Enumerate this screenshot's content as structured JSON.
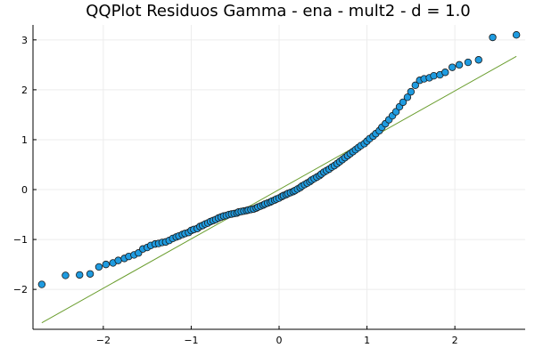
{
  "chart_data": {
    "type": "scatter",
    "title": "QQPlot Residuos Gamma - ena - mult2 - d = 1.0",
    "xlabel": "",
    "ylabel": "",
    "xlim": [
      -2.8,
      2.8
    ],
    "ylim": [
      -2.8,
      3.3
    ],
    "x_ticks": [
      -2,
      -1,
      0,
      1,
      2
    ],
    "y_ticks": [
      -2,
      -1,
      0,
      1,
      2,
      3
    ],
    "x_tick_labels": [
      "−2",
      "−1",
      "0",
      "1",
      "2"
    ],
    "y_tick_labels": [
      "−2",
      "−1",
      "0",
      "1",
      "2",
      "3"
    ],
    "grid": true,
    "legend": "none",
    "colors": {
      "points": "#1f9be0",
      "point_edge": "#1a1a1a",
      "line": "#6b9e2f",
      "grid": "#ececec",
      "axis": "#000000"
    },
    "series": [
      {
        "kind": "points",
        "x": [
          -2.7,
          -2.43,
          -2.27,
          -2.15,
          -2.05,
          -1.97,
          -1.89,
          -1.83,
          -1.76,
          -1.71,
          -1.65,
          -1.6,
          -1.55,
          -1.5,
          -1.46,
          -1.41,
          -1.37,
          -1.33,
          -1.29,
          -1.25,
          -1.21,
          -1.17,
          -1.14,
          -1.1,
          -1.07,
          -1.03,
          -1.0,
          -0.97,
          -0.93,
          -0.9,
          -0.87,
          -0.84,
          -0.81,
          -0.78,
          -0.75,
          -0.72,
          -0.69,
          -0.66,
          -0.63,
          -0.6,
          -0.57,
          -0.54,
          -0.51,
          -0.48,
          -0.46,
          -0.43,
          -0.4,
          -0.37,
          -0.35,
          -0.32,
          -0.29,
          -0.26,
          -0.24,
          -0.21,
          -0.18,
          -0.16,
          -0.13,
          -0.1,
          -0.08,
          -0.05,
          -0.03,
          0.0,
          0.03,
          0.05,
          0.08,
          0.1,
          0.13,
          0.16,
          0.18,
          0.21,
          0.24,
          0.26,
          0.29,
          0.32,
          0.35,
          0.37,
          0.4,
          0.43,
          0.46,
          0.48,
          0.51,
          0.54,
          0.57,
          0.6,
          0.63,
          0.66,
          0.69,
          0.72,
          0.75,
          0.78,
          0.81,
          0.84,
          0.87,
          0.9,
          0.93,
          0.97,
          1.0,
          1.03,
          1.07,
          1.1,
          1.14,
          1.17,
          1.21,
          1.25,
          1.29,
          1.33,
          1.37,
          1.41,
          1.46,
          1.5,
          1.55,
          1.6,
          1.65,
          1.71,
          1.76,
          1.83,
          1.89,
          1.97,
          2.05,
          2.15,
          2.27,
          2.43,
          2.7
        ],
        "y": [
          -1.9,
          -1.72,
          -1.71,
          -1.69,
          -1.55,
          -1.5,
          -1.47,
          -1.42,
          -1.38,
          -1.34,
          -1.31,
          -1.27,
          -1.19,
          -1.16,
          -1.12,
          -1.09,
          -1.08,
          -1.06,
          -1.05,
          -1.02,
          -0.98,
          -0.95,
          -0.93,
          -0.9,
          -0.88,
          -0.86,
          -0.82,
          -0.8,
          -0.78,
          -0.74,
          -0.72,
          -0.69,
          -0.67,
          -0.64,
          -0.62,
          -0.6,
          -0.57,
          -0.55,
          -0.53,
          -0.52,
          -0.5,
          -0.49,
          -0.48,
          -0.47,
          -0.45,
          -0.44,
          -0.43,
          -0.42,
          -0.41,
          -0.4,
          -0.39,
          -0.37,
          -0.35,
          -0.33,
          -0.31,
          -0.29,
          -0.27,
          -0.25,
          -0.23,
          -0.21,
          -0.19,
          -0.17,
          -0.14,
          -0.12,
          -0.1,
          -0.08,
          -0.06,
          -0.04,
          -0.02,
          0.01,
          0.04,
          0.07,
          0.1,
          0.13,
          0.16,
          0.19,
          0.22,
          0.25,
          0.28,
          0.31,
          0.35,
          0.38,
          0.41,
          0.45,
          0.48,
          0.52,
          0.56,
          0.6,
          0.64,
          0.68,
          0.72,
          0.76,
          0.8,
          0.84,
          0.88,
          0.92,
          0.97,
          1.02,
          1.07,
          1.12,
          1.18,
          1.25,
          1.32,
          1.4,
          1.48,
          1.56,
          1.66,
          1.75,
          1.85,
          1.96,
          2.09,
          2.19,
          2.22,
          2.24,
          2.28,
          2.3,
          2.35,
          2.45,
          2.5,
          2.55,
          2.6,
          3.05,
          3.1
        ]
      },
      {
        "kind": "reference-line",
        "x": [
          -2.7,
          2.7
        ],
        "y": [
          -2.67,
          2.67
        ]
      }
    ]
  }
}
